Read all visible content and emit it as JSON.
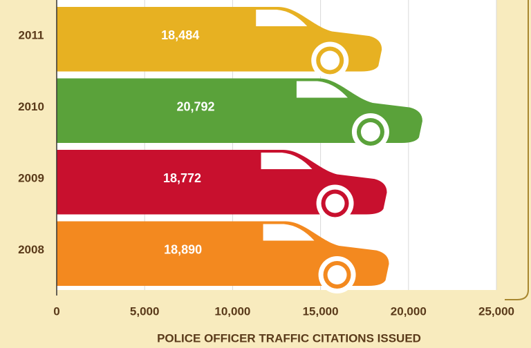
{
  "chart_data": {
    "type": "hbar",
    "categories": [
      "2011",
      "2010",
      "2009",
      "2008"
    ],
    "values": [
      18484,
      20792,
      18772,
      18890
    ],
    "value_labels": [
      "18,484",
      "20,792",
      "18,772",
      "18,890"
    ],
    "colors": [
      "#e7b122",
      "#5aa23a",
      "#c8102e",
      "#f3891f"
    ],
    "xlabel": "POLICE OFFICER TRAFFIC CITATIONS ISSUED",
    "xlim": [
      0,
      25000
    ],
    "xticks": [
      0,
      {
        "value": 5000,
        "label": "5,000"
      },
      {
        "value": 10000,
        "label": "10,000"
      },
      {
        "value": 15000,
        "label": "15,000"
      },
      {
        "value": 20000,
        "label": "20,000"
      },
      {
        "value": 25000,
        "label": "25,000"
      }
    ],
    "grid": true
  }
}
